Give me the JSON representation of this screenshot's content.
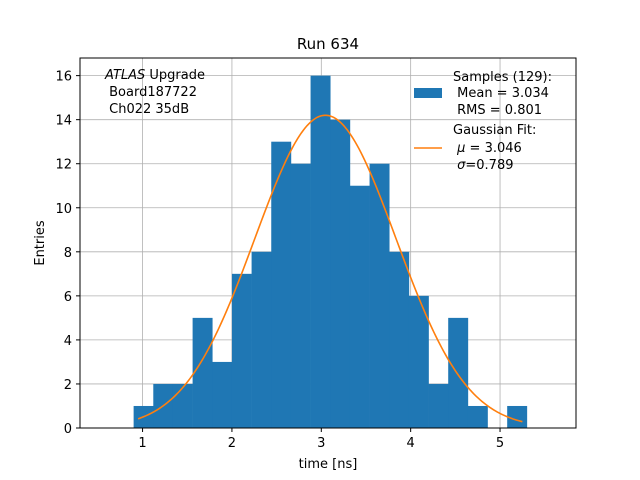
{
  "chart_data": {
    "type": "bar",
    "title": "Run 634",
    "xlabel": "time [ns]",
    "ylabel": "Entries",
    "xlim": [
      0.3,
      5.85
    ],
    "ylim": [
      0,
      16.8
    ],
    "xticks": [
      1,
      2,
      3,
      4,
      5
    ],
    "yticks": [
      0,
      2,
      4,
      6,
      8,
      10,
      12,
      14,
      16
    ],
    "grid": true,
    "bar_color": "#1f77b4",
    "fit_color": "#ff7f0e",
    "bin_edges": [
      0.9,
      1.12,
      1.34,
      1.56,
      1.78,
      2.0,
      2.22,
      2.44,
      2.66,
      2.88,
      3.1,
      3.32,
      3.54,
      3.76,
      3.98,
      4.2,
      4.42,
      4.64,
      4.86,
      5.08,
      5.3
    ],
    "counts": [
      1,
      2,
      2,
      5,
      3,
      7,
      8,
      13,
      12,
      16,
      14,
      11,
      12,
      8,
      6,
      2,
      5,
      1,
      0,
      1
    ],
    "fit": {
      "amplitude": 14.2,
      "mu": 3.046,
      "sigma": 0.789,
      "x_range": [
        0.95,
        5.25
      ]
    },
    "legend_placement": "upper right",
    "info_box": {
      "experiment": "ATLAS",
      "experiment_suffix": " Upgrade",
      "board": " Board187722",
      "channel": " Ch022 35dB"
    },
    "legend": {
      "samples_title": "Samples (129):",
      "samples_mean": " Mean = 3.034",
      "samples_rms": " RMS = 0.801",
      "fit_title": "Gaussian Fit:",
      "fit_mu_symbol": "μ",
      "fit_mu_value": " = 3.046",
      "fit_sigma_symbol": "σ",
      "fit_sigma_value": "=0.789"
    }
  }
}
